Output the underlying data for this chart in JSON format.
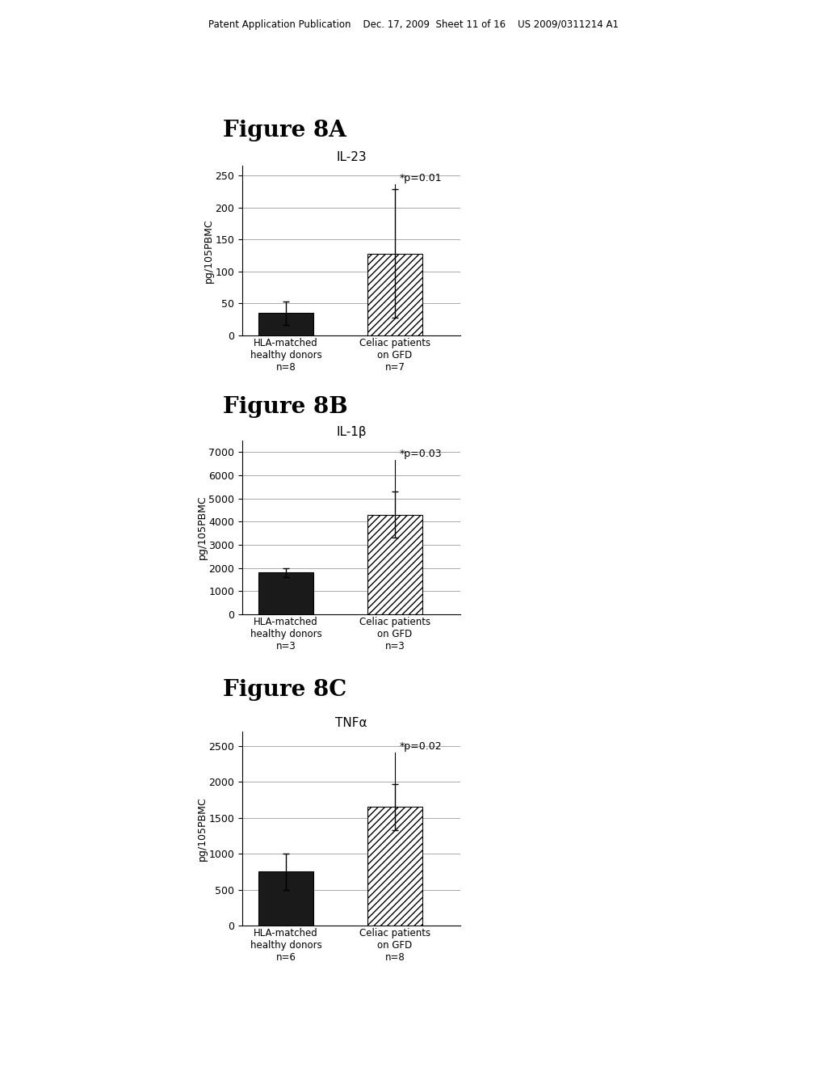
{
  "header_text": "Patent Application Publication    Dec. 17, 2009  Sheet 11 of 16    US 2009/0311214 A1",
  "chart_A": {
    "fig_label": "Figure 8A",
    "title": "IL-23",
    "ylabel": "pg/105PBMC",
    "yticks": [
      0,
      50,
      100,
      150,
      200,
      250
    ],
    "ylim": [
      0,
      265
    ],
    "bar1_value": 35,
    "bar1_err": 18,
    "bar2_value": 128,
    "bar2_err": 100,
    "pvalue": "*p=0.01",
    "xlabel1": "HLA-matched\nhealthy donors\nn=8",
    "xlabel2": "Celiac patients\non GFD\nn=7"
  },
  "chart_B": {
    "fig_label": "Figure 8B",
    "title": "IL-1β",
    "ylabel": "pg/105PBMC",
    "yticks": [
      0,
      1000,
      2000,
      3000,
      4000,
      5000,
      6000,
      7000
    ],
    "ylim": [
      0,
      7500
    ],
    "bar1_value": 1800,
    "bar1_err": 200,
    "bar2_value": 4300,
    "bar2_err": 1000,
    "pvalue": "*p=0.03",
    "xlabel1": "HLA-matched\nhealthy donors\nn=3",
    "xlabel2": "Celiac patients\non GFD\nn=3"
  },
  "chart_C": {
    "fig_label": "Figure 8C",
    "title": "TNFα",
    "ylabel": "pg/105PBMC",
    "yticks": [
      0,
      500,
      1000,
      1500,
      2000,
      2500
    ],
    "ylim": [
      0,
      2700
    ],
    "bar1_value": 750,
    "bar1_err": 250,
    "bar2_value": 1650,
    "bar2_err": 320,
    "pvalue": "*p=0.02",
    "xlabel1": "HLA-matched\nhealthy donors\nn=6",
    "xlabel2": "Celiac patients\non GFD\nn=8"
  },
  "bar_width": 0.5,
  "bar1_color": "#1a1a1a",
  "bar2_color": "white",
  "hatch_pattern": "////",
  "background_color": "#ffffff",
  "text_color": "#000000",
  "fig_label_fontsize": 20,
  "chart_title_fontsize": 11,
  "ylabel_fontsize": 9,
  "tick_fontsize": 9,
  "xlabel_fontsize": 8.5,
  "pval_fontsize": 9
}
